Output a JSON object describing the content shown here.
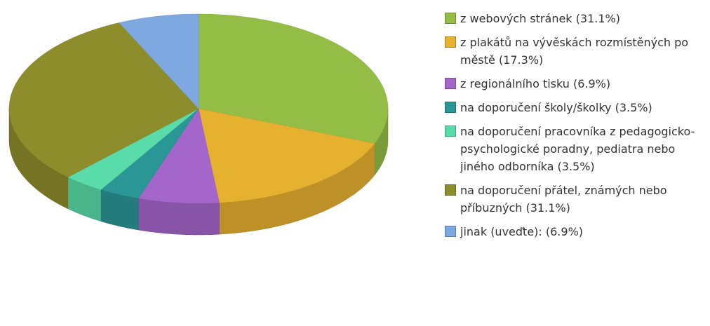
{
  "chart_data": {
    "type": "pie3d",
    "categories": [
      "z webových stránek (31.1%)",
      "z plakátů na vývěskách rozmístěných po městě (17.3%)",
      "z regionálního tisku (6.9%)",
      "na doporučení školy/školky (3.5%)",
      "na doporučení pracovníka z pedagogicko-psychologické poradny, pediatra nebo jiného odborníka (3.5%)",
      "na doporučení přátel, známých nebo příbuzných (31.1%)",
      "jinak (uveďte): (6.9%)"
    ],
    "values": [
      31.1,
      17.3,
      6.9,
      3.5,
      3.5,
      31.1,
      6.9
    ],
    "colors": [
      "#93bd45",
      "#e7b130",
      "#a566cc",
      "#2b9696",
      "#5adcaa",
      "#8d8d2c",
      "#7ea9e0"
    ]
  }
}
